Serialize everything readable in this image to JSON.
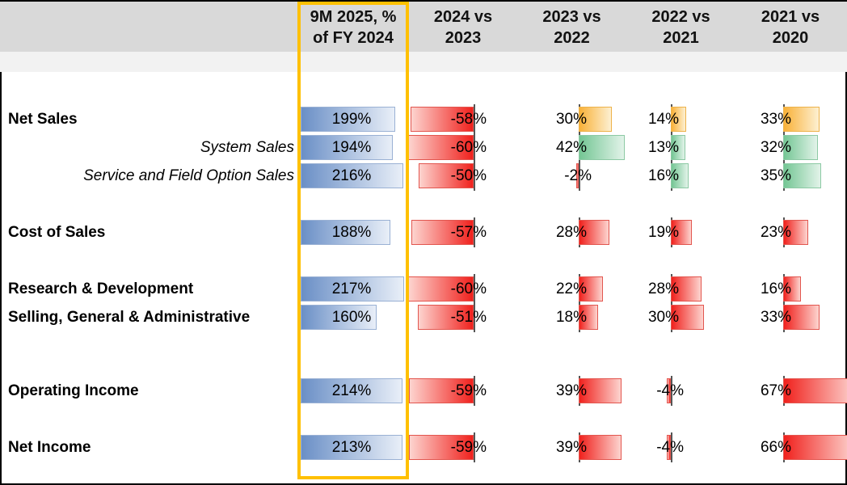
{
  "header": {
    "bg": "#d9d9d9",
    "subband_bg": "#f2f2f2",
    "columns": [
      {
        "line1": "9M 2025, %",
        "line2": "of FY 2024"
      },
      {
        "line1": "2024 vs",
        "line2": "2023"
      },
      {
        "line1": "2023 vs",
        "line2": "2022"
      },
      {
        "line1": "2022 vs",
        "line2": "2021"
      },
      {
        "line1": "2021 vs",
        "line2": "2020"
      }
    ]
  },
  "highlight": {
    "column": "9M 2025, % of FY 2024",
    "border_color": "#ffc000"
  },
  "chart_data": {
    "type": "bar",
    "title": "",
    "unit": "%",
    "columns": [
      "9M 2025, % of FY 2024",
      "2024 vs 2023",
      "2023 vs 2022",
      "2022 vs 2021",
      "2021 vs 2020"
    ],
    "legend": "none",
    "grid": "off",
    "palette": {
      "blue": {
        "dark": "#6a8fc6",
        "light": "#e9eff8",
        "border": "#9ab1d4"
      },
      "red": {
        "dark": "#f0211d",
        "light": "#fdd4cf",
        "border": "#e2564f"
      },
      "orange": {
        "dark": "#f9b138",
        "light": "#fdf0d2",
        "border": "#edb24a"
      },
      "green": {
        "dark": "#74c694",
        "light": "#e2f3e9",
        "border": "#8cc9a4"
      }
    },
    "rows": [
      {
        "label": "Net Sales",
        "emphasis": "bold",
        "values": [
          199,
          -58,
          30,
          14,
          33
        ],
        "colors": [
          "blue",
          "red",
          "orange",
          "orange",
          "orange"
        ]
      },
      {
        "label": "System Sales",
        "emphasis": "italic",
        "values": [
          194,
          -60,
          42,
          13,
          32
        ],
        "colors": [
          "blue",
          "red",
          "green",
          "green",
          "green"
        ]
      },
      {
        "label": "Service and Field Option Sales",
        "emphasis": "italic",
        "values": [
          216,
          -50,
          -2,
          16,
          35
        ],
        "colors": [
          "blue",
          "red",
          "red",
          "green",
          "green"
        ]
      },
      {
        "label": "Cost of Sales",
        "emphasis": "bold",
        "values": [
          188,
          -57,
          28,
          19,
          23
        ],
        "colors": [
          "blue",
          "red",
          "red",
          "red",
          "red"
        ]
      },
      {
        "label": "Research & Development",
        "emphasis": "bold",
        "values": [
          217,
          -60,
          22,
          28,
          16
        ],
        "colors": [
          "blue",
          "red",
          "red",
          "red",
          "red"
        ]
      },
      {
        "label": "Selling, General & Administrative",
        "emphasis": "bold",
        "values": [
          160,
          -51,
          18,
          30,
          33
        ],
        "colors": [
          "blue",
          "red",
          "red",
          "red",
          "red"
        ]
      },
      {
        "label": "Operating Income",
        "emphasis": "bold",
        "values": [
          214,
          -59,
          39,
          -4,
          67
        ],
        "colors": [
          "blue",
          "red",
          "red",
          "red",
          "red"
        ]
      },
      {
        "label": "Net Income",
        "emphasis": "bold",
        "values": [
          213,
          -59,
          39,
          -4,
          66
        ],
        "colors": [
          "blue",
          "red",
          "red",
          "red",
          "red"
        ]
      }
    ]
  }
}
